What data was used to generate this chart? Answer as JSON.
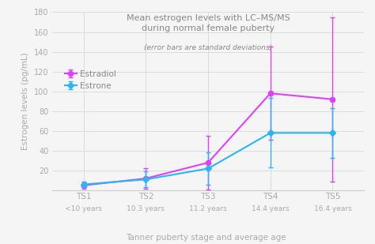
{
  "title_line1": "Mean estrogen levels with LC–MS/MS",
  "title_line2": "during normal female puberty",
  "subtitle": "(error bars are standard deviations)",
  "xlabel": "Tanner puberty stage and average age",
  "ylabel": "Estrogen levels (pg/mL)",
  "x_labels_top": [
    "TS1",
    "TS2",
    "TS3",
    "TS4",
    "TS5"
  ],
  "x_labels_bottom": [
    "<10 years",
    "10.3 years",
    "11.2 years",
    "14.4 years",
    "16.4 years"
  ],
  "estradiol": {
    "label": "Estradiol",
    "values": [
      5,
      12,
      28,
      98,
      92
    ],
    "errors": [
      3,
      10,
      27,
      47,
      83
    ],
    "color": "#e040fb"
  },
  "estrone": {
    "label": "Estrone",
    "values": [
      6,
      11,
      22,
      58,
      58
    ],
    "errors": [
      3,
      8,
      16,
      35,
      25
    ],
    "color": "#29b6f6"
  },
  "ylim": [
    0,
    180
  ],
  "yticks": [
    0,
    20,
    40,
    60,
    80,
    100,
    120,
    140,
    160,
    180
  ],
  "bg_color": "#f5f5f5",
  "grid_color": "#dcdcdc",
  "title_color": "#888888",
  "axis_label_color": "#aaaaaa",
  "tick_label_color": "#aaaaaa"
}
